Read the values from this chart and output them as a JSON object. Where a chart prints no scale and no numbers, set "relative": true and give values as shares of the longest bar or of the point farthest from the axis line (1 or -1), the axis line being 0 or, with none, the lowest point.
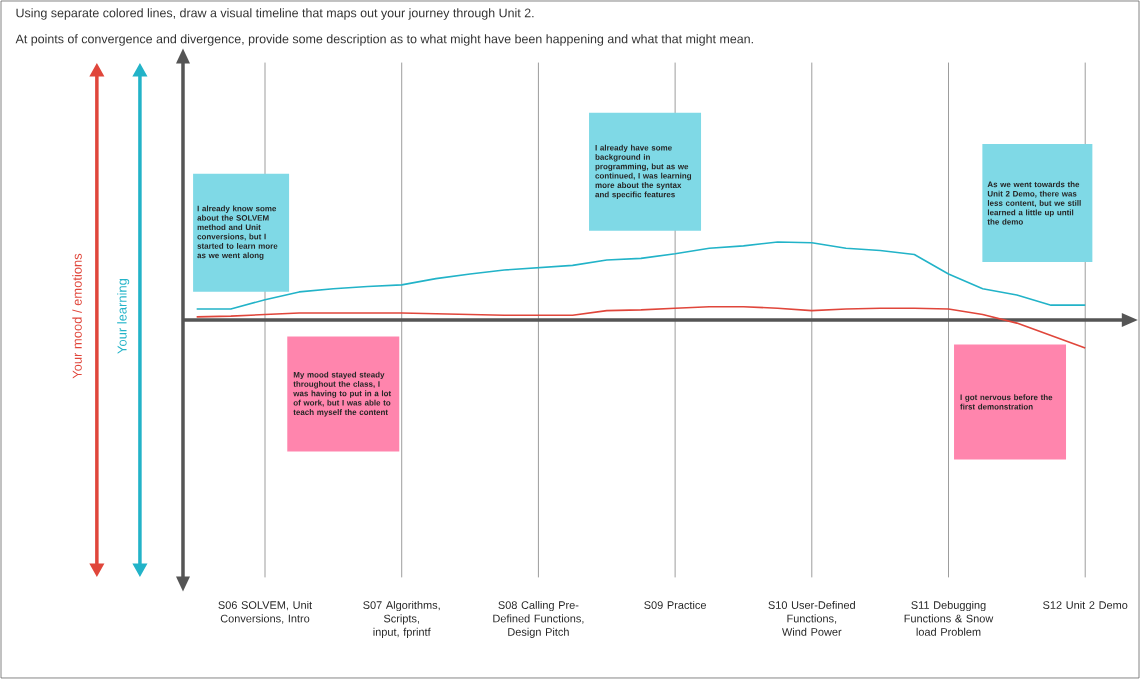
{
  "chart_data": {
    "type": "line",
    "title": "Using separate colored lines, draw a visual timeline that maps out your journey through Unit 2.",
    "subtitle": "At points of convergence and divergence, provide some description as to what might have been happening and what that might mean.",
    "relative": true,
    "grid": "x",
    "line_style": "solid",
    "categories": [
      null,
      null,
      "S06 SOLVEM, Unit Conversions, Intro",
      null,
      null,
      null,
      "S07 Algorithms, Scripts, input, fprintf",
      null,
      null,
      null,
      "S08 Calling Pre-Defined Functions, Design Pitch",
      null,
      null,
      null,
      "S09 Practice",
      null,
      null,
      null,
      "S10 User-Defined Functions, Wind Power",
      null,
      null,
      null,
      "S11 Debugging Functions & Snow load Problem",
      null,
      null,
      null,
      "S12 Unit 2 Demo"
    ],
    "series": [
      {
        "name": "Your mood / emotions",
        "color": "#e0463b",
        "values": [
          0.04,
          0.05,
          0.07,
          0.09,
          0.09,
          0.09,
          0.09,
          0.08,
          0.07,
          0.06,
          0.06,
          0.06,
          0.12,
          0.13,
          0.15,
          0.17,
          0.17,
          0.15,
          0.12,
          0.14,
          0.15,
          0.15,
          0.14,
          0.07,
          -0.04,
          -0.2,
          -0.36
        ]
      },
      {
        "name": "Your learning",
        "color": "#22b3c8",
        "values": [
          0.14,
          0.14,
          0.26,
          0.36,
          0.4,
          0.43,
          0.45,
          0.53,
          0.59,
          0.64,
          0.67,
          0.7,
          0.77,
          0.79,
          0.85,
          0.92,
          0.95,
          1,
          0.99,
          0.92,
          0.89,
          0.84,
          0.59,
          0.4,
          0.32,
          0.19,
          0.19
        ]
      }
    ],
    "annotations": [
      "I already know some about the SOLVEM method and Unit conversions, but I started to learn more as we went along",
      "My mood stayed steady throughout the class, I was having to put in a lot of work, but I was able to teach myself the content",
      "I already have some background in programming, but as we continued, I was learning more about the syntax and specific features",
      "As we went towards the Unit 2 Demo, there was less content, but we still learned a little up until the demo",
      "I got nervous before the first demonstration"
    ]
  }
}
